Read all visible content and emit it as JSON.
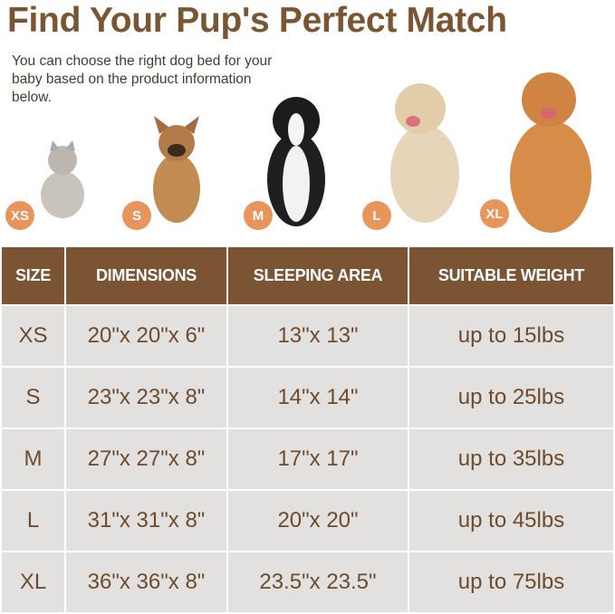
{
  "header": {
    "title": "Find Your Pup's Perfect Match",
    "subtitle": "You can choose the right dog bed for your baby based on the product information below."
  },
  "animals": [
    {
      "badge": "XS",
      "animal": "cat"
    },
    {
      "badge": "S",
      "animal": "french-bulldog"
    },
    {
      "badge": "M",
      "animal": "border-collie"
    },
    {
      "badge": "L",
      "animal": "golden-retriever-puppy"
    },
    {
      "badge": "XL",
      "animal": "golden-retriever"
    }
  ],
  "colors": {
    "brand": "#7b5434",
    "badge": "#e9945b",
    "row": "#e3e1e0"
  },
  "table": {
    "headers": [
      "SIZE",
      "DIMENSIONS",
      "SLEEPING AREA",
      "SUITABLE WEIGHT"
    ],
    "rows": [
      [
        "XS",
        "20\"x 20\"x 6\"",
        "13\"x 13\"",
        "up to 15lbs"
      ],
      [
        "S",
        "23\"x 23\"x 8\"",
        "14\"x 14\"",
        "up to 25lbs"
      ],
      [
        "M",
        "27\"x 27\"x 8\"",
        "17\"x 17\"",
        "up to 35lbs"
      ],
      [
        "L",
        "31\"x 31\"x 8\"",
        "20\"x 20\"",
        "up to 45lbs"
      ],
      [
        "XL",
        "36\"x 36\"x 8\"",
        "23.5\"x 23.5\"",
        "up to 75lbs"
      ]
    ]
  }
}
